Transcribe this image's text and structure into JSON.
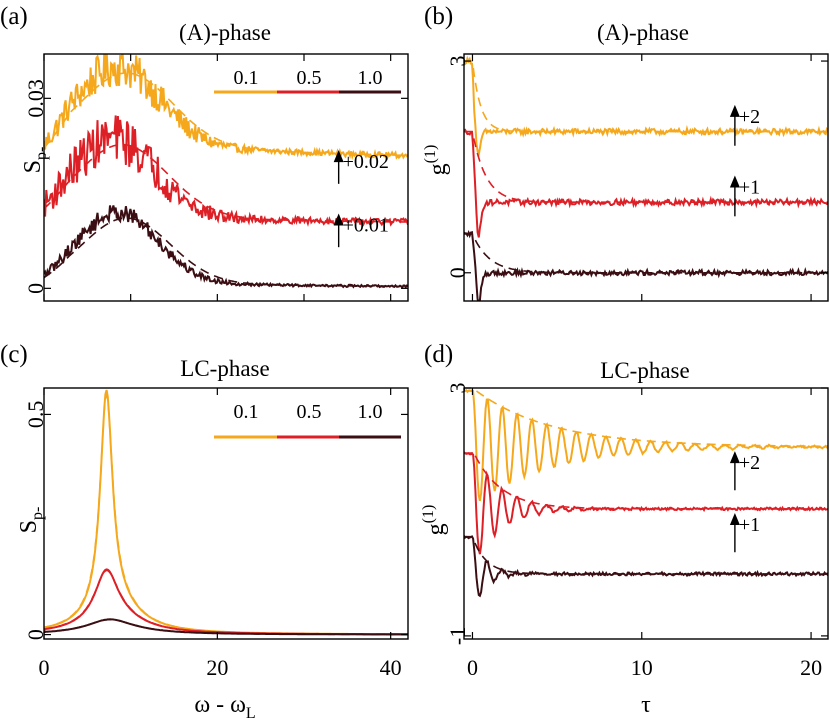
{
  "figure": {
    "colors": {
      "c0.1": "#f5a81c",
      "c0.5": "#dd1f26",
      "c1.0": "#3a0e12"
    }
  },
  "chart_data": [
    {
      "id": "a",
      "type": "line",
      "panel_label": "(a)",
      "title": "(A)-phase",
      "ylabel": "S",
      "ylabel_sub": "p-",
      "xlim": [
        0,
        42
      ],
      "ylim": [
        -0.002,
        0.037
      ],
      "yticks": [
        0,
        0.03
      ],
      "ytick_labels": [
        "0",
        "0.03"
      ],
      "x_tick_values": [
        0,
        10,
        20,
        30,
        40
      ],
      "x_tick_labels_shown": false,
      "legend": {
        "labels": [
          "0.1",
          "0.5",
          "1.0"
        ],
        "position": "top-right"
      },
      "annotations": [
        {
          "text": "+0.02",
          "x": 34,
          "y_from": 0.0165,
          "y_to": 0.0215
        },
        {
          "text": "+0.01",
          "x": 34,
          "y_from": 0.0065,
          "y_to": 0.0115
        }
      ],
      "series": [
        {
          "name": "0.1",
          "offset": 0.02,
          "shape": "broad",
          "center": 8.5,
          "width": 4.8,
          "tail": 0.0025,
          "peak": 0.0125,
          "noise": 0.0028,
          "has_fit": true
        },
        {
          "name": "0.5",
          "offset": 0.01,
          "shape": "broad",
          "center": 8.0,
          "width": 4.8,
          "tail": 0.0012,
          "peak": 0.0125,
          "noise": 0.0034,
          "has_fit": true
        },
        {
          "name": "1.0",
          "offset": 0.0,
          "shape": "broad",
          "center": 8.5,
          "width": 4.6,
          "tail": 0.0008,
          "peak": 0.0112,
          "noise": 0.0012,
          "has_fit": true
        }
      ]
    },
    {
      "id": "b",
      "type": "line",
      "panel_label": "(b)",
      "title": "(A)-phase",
      "ylabel": "g",
      "ylabel_sup": "(1)",
      "xlim": [
        -0.5,
        21
      ],
      "ylim": [
        -0.4,
        3.1
      ],
      "yticks": [
        0,
        3
      ],
      "ytick_labels": [
        "0",
        "3"
      ],
      "x_tick_values": [
        0,
        10,
        20
      ],
      "x_tick_labels_shown": false,
      "annotations": [
        {
          "text": "+2",
          "x": 15.5,
          "y_from": 1.8,
          "y_to": 2.35
        },
        {
          "text": "+1",
          "x": 15.5,
          "y_from": 0.8,
          "y_to": 1.35
        }
      ],
      "series": [
        {
          "name": "0.1",
          "offset": 2,
          "shape": "decay",
          "start": 1.0,
          "dip": -0.35,
          "tau": 0.12,
          "omega": 4.0,
          "noise": 0.04,
          "has_fit": true
        },
        {
          "name": "0.5",
          "offset": 1,
          "shape": "decay",
          "start": 1.0,
          "dip": -0.5,
          "tau": 0.2,
          "omega": 4.0,
          "noise": 0.04,
          "has_fit": true
        },
        {
          "name": "1.0",
          "offset": 0,
          "shape": "decay",
          "start": 0.55,
          "dip": -0.45,
          "tau": 0.25,
          "omega": 4.0,
          "noise": 0.035,
          "has_fit": true
        }
      ]
    },
    {
      "id": "c",
      "type": "line",
      "panel_label": "(c)",
      "title": "LC-phase",
      "ylabel": "S",
      "ylabel_sub": "p-",
      "xlabel": "ω - ω",
      "xlabel_sub": "L",
      "xlim": [
        0,
        42
      ],
      "ylim": [
        -0.01,
        0.56
      ],
      "yticks": [
        0,
        0.5
      ],
      "ytick_labels": [
        "0",
        "0.5"
      ],
      "xticks": [
        0,
        20,
        40
      ],
      "xtick_labels": [
        "0",
        "20",
        "40"
      ],
      "legend": {
        "labels": [
          "0.1",
          "0.5",
          "1.0"
        ],
        "position": "top-right"
      },
      "series": [
        {
          "name": "0.1",
          "offset": 0,
          "shape": "lorentz",
          "center": 7.2,
          "height": 0.5,
          "gamma": 0.85,
          "second_height": 0.06,
          "second_gamma": 3.5,
          "has_fit": true
        },
        {
          "name": "0.5",
          "offset": 0,
          "shape": "lorentz",
          "center": 7.2,
          "height": 0.115,
          "gamma": 1.6,
          "second_height": 0.035,
          "second_gamma": 4.0,
          "has_fit": true
        },
        {
          "name": "1.0",
          "offset": 0,
          "shape": "lorentz",
          "center": 7.5,
          "height": 0.025,
          "gamma": 3.0,
          "second_height": 0.01,
          "second_gamma": 5.0,
          "has_fit": true
        }
      ]
    },
    {
      "id": "d",
      "type": "line",
      "panel_label": "(d)",
      "title": "LC-phase",
      "ylabel": "g",
      "ylabel_sup": "(1)",
      "xlabel": "τ",
      "xlim": [
        -0.5,
        21
      ],
      "ylim": [
        -1.05,
        3.0
      ],
      "yticks": [
        -1,
        3
      ],
      "ytick_labels": [
        "-1",
        "3"
      ],
      "xticks": [
        0,
        10,
        20
      ],
      "xtick_labels": [
        "0",
        "10",
        "20"
      ],
      "annotations": [
        {
          "text": "+2",
          "x": 15.5,
          "y_from": 1.35,
          "y_to": 1.95
        },
        {
          "text": "+1",
          "x": 15.5,
          "y_from": 0.35,
          "y_to": 0.95
        }
      ],
      "series": [
        {
          "name": "0.1",
          "offset": 2,
          "shape": "oscdecay",
          "base": 0.05,
          "amp": 0.95,
          "tau": 4.5,
          "omega": 8.6,
          "noise": 0.015,
          "has_fit": true
        },
        {
          "name": "0.5",
          "offset": 1,
          "shape": "oscdecay",
          "base": 0.05,
          "amp": 0.95,
          "tau": 1.6,
          "omega": 8.6,
          "noise": 0.02,
          "has_fit": true
        },
        {
          "name": "1.0",
          "offset": 0,
          "shape": "oscdecay",
          "base": 0.0,
          "amp": 0.6,
          "tau": 0.8,
          "omega": 8.6,
          "noise": 0.025,
          "has_fit": true
        }
      ]
    }
  ]
}
